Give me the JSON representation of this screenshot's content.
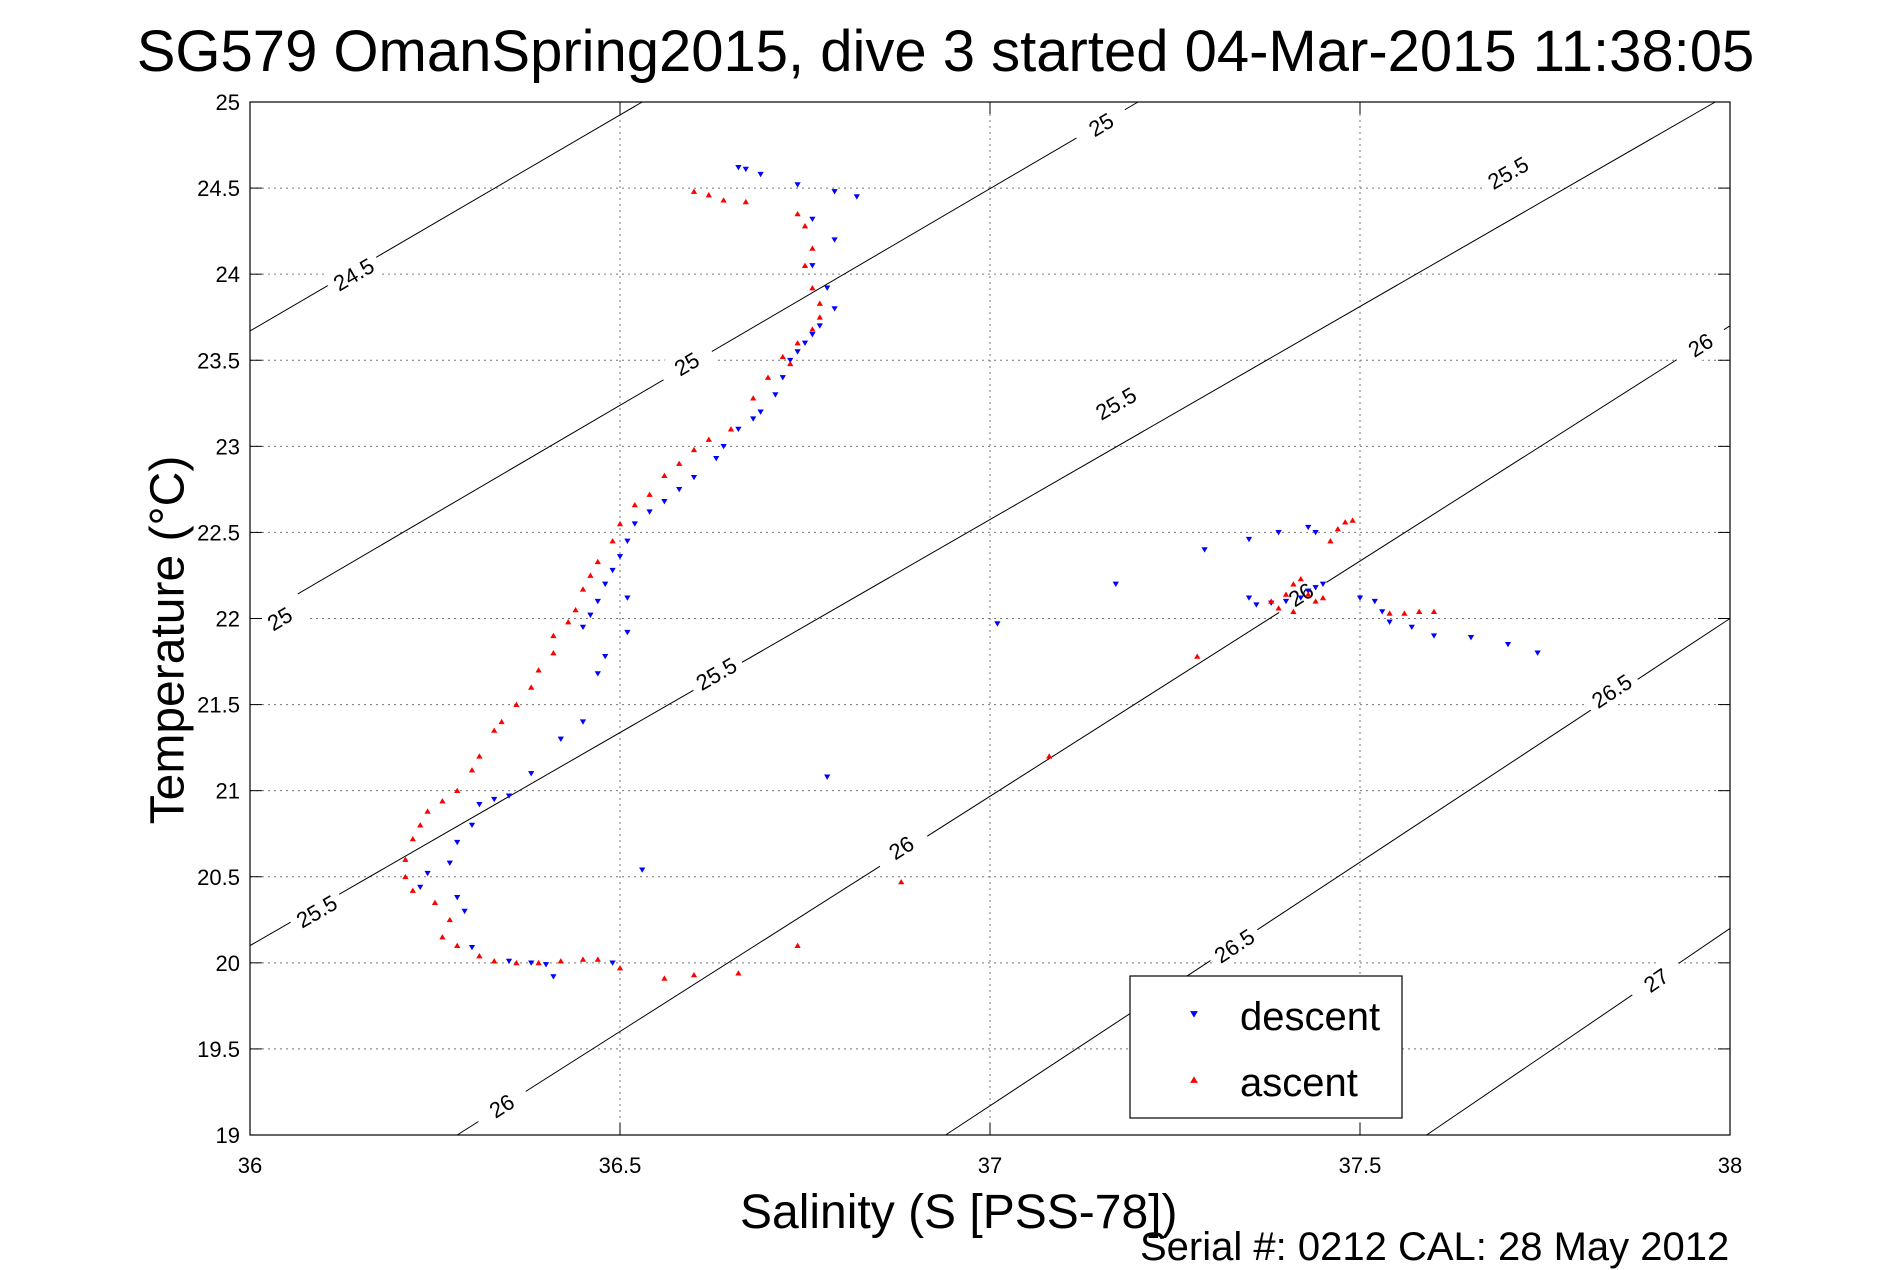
{
  "chart_data": {
    "type": "scatter",
    "title": "SG579 OmanSpring2015, dive 3 started 04-Mar-2015 11:38:05",
    "xlabel": "Salinity (S [PSS-78])",
    "ylabel": "Temperature (°C)",
    "footer": "Serial #: 0212  CAL: 28 May 2012",
    "xlim": [
      36,
      38
    ],
    "ylim": [
      19,
      25
    ],
    "xticks": [
      "36",
      "36.5",
      "37",
      "37.5",
      "38"
    ],
    "yticks": [
      "19",
      "19.5",
      "20",
      "20.5",
      "21",
      "21.5",
      "22",
      "22.5",
      "23",
      "23.5",
      "24",
      "24.5",
      "25"
    ],
    "grid": true,
    "legend": {
      "position": "bottom-right",
      "entries": [
        "descent",
        "ascent"
      ]
    },
    "colors": {
      "descent": "#0000ff",
      "ascent": "#ff0000",
      "contour": "#000000"
    },
    "density_contours": [
      {
        "label": "24.5",
        "points": [
          [
            36,
            23.67
          ],
          [
            36.53,
            25
          ]
        ],
        "label_at": [
          36.14,
          24.0
        ]
      },
      {
        "label": "25",
        "points": [
          [
            36,
            21.98
          ],
          [
            37.2,
            25
          ]
        ],
        "label_at": [
          36.04,
          22.0
        ]
      },
      {
        "label": "25",
        "points": [
          [
            36,
            21.98
          ],
          [
            37.2,
            25
          ]
        ],
        "label_at": [
          36.59,
          23.48
        ]
      },
      {
        "label": "25",
        "points": [
          [
            36,
            21.98
          ],
          [
            37.2,
            25
          ]
        ],
        "label_at": [
          37.15,
          24.87
        ]
      },
      {
        "label": "25.5",
        "points": [
          [
            36,
            20.1
          ],
          [
            37.98,
            25
          ]
        ],
        "label_at": [
          36.09,
          20.3
        ]
      },
      {
        "label": "25.5",
        "points": [
          [
            36,
            20.1
          ],
          [
            37.98,
            25
          ]
        ],
        "label_at": [
          36.63,
          21.68
        ]
      },
      {
        "label": "25.5",
        "points": [
          [
            36,
            20.1
          ],
          [
            37.98,
            25
          ]
        ],
        "label_at": [
          37.17,
          23.25
        ]
      },
      {
        "label": "25.5",
        "points": [
          [
            36,
            20.1
          ],
          [
            37.98,
            25
          ]
        ],
        "label_at": [
          37.7,
          24.59
        ]
      },
      {
        "label": "26",
        "points": [
          [
            36.28,
            19
          ],
          [
            38,
            23.7
          ]
        ],
        "label_at": [
          36.34,
          19.17
        ]
      },
      {
        "label": "26",
        "points": [
          [
            36.28,
            19
          ],
          [
            38,
            23.7
          ]
        ],
        "label_at": [
          36.88,
          20.67
        ]
      },
      {
        "label": "26",
        "points": [
          [
            36.28,
            19
          ],
          [
            38,
            23.7
          ]
        ],
        "label_at": [
          37.42,
          22.14
        ]
      },
      {
        "label": "26",
        "points": [
          [
            36.28,
            19
          ],
          [
            38,
            23.7
          ]
        ],
        "label_at": [
          37.96,
          23.59
        ]
      },
      {
        "label": "26.5",
        "points": [
          [
            36.94,
            19
          ],
          [
            38,
            22
          ]
        ],
        "label_at": [
          37.33,
          20.1
        ]
      },
      {
        "label": "26.5",
        "points": [
          [
            36.94,
            19
          ],
          [
            38,
            22
          ]
        ],
        "label_at": [
          37.84,
          21.58
        ]
      },
      {
        "label": "27",
        "points": [
          [
            37.59,
            19
          ],
          [
            38,
            20.2
          ]
        ],
        "label_at": [
          37.9,
          19.9
        ]
      }
    ],
    "series": [
      {
        "name": "descent",
        "marker": "triangle-down",
        "points": [
          [
            36.66,
            24.62
          ],
          [
            36.67,
            24.61
          ],
          [
            36.69,
            24.58
          ],
          [
            36.74,
            24.52
          ],
          [
            36.79,
            24.48
          ],
          [
            36.82,
            24.45
          ],
          [
            36.76,
            24.32
          ],
          [
            36.79,
            24.2
          ],
          [
            36.76,
            24.05
          ],
          [
            36.78,
            23.92
          ],
          [
            36.79,
            23.8
          ],
          [
            36.77,
            23.7
          ],
          [
            36.76,
            23.65
          ],
          [
            36.75,
            23.6
          ],
          [
            36.74,
            23.55
          ],
          [
            36.73,
            23.5
          ],
          [
            36.72,
            23.4
          ],
          [
            36.71,
            23.3
          ],
          [
            36.69,
            23.2
          ],
          [
            36.68,
            23.16
          ],
          [
            36.66,
            23.1
          ],
          [
            36.64,
            23.0
          ],
          [
            36.63,
            22.93
          ],
          [
            36.6,
            22.82
          ],
          [
            36.58,
            22.75
          ],
          [
            36.56,
            22.68
          ],
          [
            36.54,
            22.62
          ],
          [
            36.52,
            22.55
          ],
          [
            36.51,
            22.45
          ],
          [
            36.5,
            22.36
          ],
          [
            36.49,
            22.28
          ],
          [
            36.48,
            22.2
          ],
          [
            36.47,
            22.1
          ],
          [
            36.46,
            22.02
          ],
          [
            36.45,
            21.95
          ],
          [
            36.51,
            22.12
          ],
          [
            36.48,
            21.78
          ],
          [
            36.47,
            21.68
          ],
          [
            36.45,
            21.4
          ],
          [
            36.42,
            21.3
          ],
          [
            36.38,
            21.1
          ],
          [
            36.35,
            20.97
          ],
          [
            36.33,
            20.95
          ],
          [
            36.31,
            20.92
          ],
          [
            36.3,
            20.8
          ],
          [
            36.28,
            20.7
          ],
          [
            36.27,
            20.58
          ],
          [
            36.24,
            20.52
          ],
          [
            36.23,
            20.44
          ],
          [
            36.28,
            20.38
          ],
          [
            36.29,
            20.3
          ],
          [
            36.3,
            20.09
          ],
          [
            36.35,
            20.01
          ],
          [
            36.38,
            20.0
          ],
          [
            36.4,
            19.99
          ],
          [
            36.41,
            19.92
          ],
          [
            36.49,
            20.0
          ],
          [
            36.53,
            20.54
          ],
          [
            36.78,
            21.08
          ],
          [
            36.51,
            21.92
          ],
          [
            37.01,
            21.97
          ],
          [
            37.17,
            22.2
          ],
          [
            37.29,
            22.4
          ],
          [
            37.35,
            22.46
          ],
          [
            37.39,
            22.5
          ],
          [
            37.43,
            22.53
          ],
          [
            37.44,
            22.5
          ],
          [
            37.45,
            22.2
          ],
          [
            37.44,
            22.18
          ],
          [
            37.43,
            22.16
          ],
          [
            37.42,
            22.12
          ],
          [
            37.4,
            22.1
          ],
          [
            37.38,
            22.09
          ],
          [
            37.36,
            22.08
          ],
          [
            37.35,
            22.12
          ],
          [
            37.5,
            22.12
          ],
          [
            37.52,
            22.1
          ],
          [
            37.53,
            22.04
          ],
          [
            37.54,
            21.98
          ],
          [
            37.57,
            21.95
          ],
          [
            37.6,
            21.9
          ],
          [
            37.65,
            21.89
          ],
          [
            37.7,
            21.85
          ],
          [
            37.74,
            21.8
          ]
        ]
      },
      {
        "name": "ascent",
        "marker": "triangle-up",
        "points": [
          [
            36.6,
            24.48
          ],
          [
            36.62,
            24.46
          ],
          [
            36.64,
            24.43
          ],
          [
            36.67,
            24.42
          ],
          [
            36.74,
            24.35
          ],
          [
            36.75,
            24.28
          ],
          [
            36.76,
            24.15
          ],
          [
            36.75,
            24.05
          ],
          [
            36.76,
            23.92
          ],
          [
            36.77,
            23.83
          ],
          [
            36.77,
            23.75
          ],
          [
            36.76,
            23.68
          ],
          [
            36.74,
            23.6
          ],
          [
            36.72,
            23.52
          ],
          [
            36.73,
            23.48
          ],
          [
            36.7,
            23.4
          ],
          [
            36.68,
            23.28
          ],
          [
            36.65,
            23.1
          ],
          [
            36.62,
            23.04
          ],
          [
            36.6,
            22.98
          ],
          [
            36.58,
            22.9
          ],
          [
            36.56,
            22.83
          ],
          [
            36.54,
            22.72
          ],
          [
            36.52,
            22.66
          ],
          [
            36.5,
            22.55
          ],
          [
            36.49,
            22.45
          ],
          [
            36.47,
            22.33
          ],
          [
            36.46,
            22.25
          ],
          [
            36.45,
            22.17
          ],
          [
            36.44,
            22.05
          ],
          [
            36.43,
            21.98
          ],
          [
            36.41,
            21.9
          ],
          [
            36.41,
            21.8
          ],
          [
            36.39,
            21.7
          ],
          [
            36.38,
            21.6
          ],
          [
            36.36,
            21.5
          ],
          [
            36.34,
            21.4
          ],
          [
            36.33,
            21.35
          ],
          [
            36.31,
            21.2
          ],
          [
            36.3,
            21.12
          ],
          [
            36.28,
            21.0
          ],
          [
            36.26,
            20.94
          ],
          [
            36.24,
            20.88
          ],
          [
            36.23,
            20.8
          ],
          [
            36.22,
            20.72
          ],
          [
            36.21,
            20.6
          ],
          [
            36.21,
            20.5
          ],
          [
            36.22,
            20.42
          ],
          [
            36.25,
            20.35
          ],
          [
            36.27,
            20.25
          ],
          [
            36.26,
            20.15
          ],
          [
            36.28,
            20.1
          ],
          [
            36.31,
            20.04
          ],
          [
            36.33,
            20.01
          ],
          [
            36.36,
            20.0
          ],
          [
            36.39,
            20.0
          ],
          [
            36.42,
            20.01
          ],
          [
            36.45,
            20.02
          ],
          [
            36.47,
            20.02
          ],
          [
            36.5,
            19.97
          ],
          [
            36.56,
            19.91
          ],
          [
            36.6,
            19.93
          ],
          [
            36.66,
            19.94
          ],
          [
            36.74,
            20.1
          ],
          [
            36.88,
            20.47
          ],
          [
            37.08,
            21.2
          ],
          [
            37.28,
            21.78
          ],
          [
            37.38,
            22.1
          ],
          [
            37.4,
            22.14
          ],
          [
            37.41,
            22.2
          ],
          [
            37.42,
            22.23
          ],
          [
            37.43,
            22.14
          ],
          [
            37.44,
            22.1
          ],
          [
            37.45,
            22.12
          ],
          [
            37.46,
            22.45
          ],
          [
            37.47,
            22.52
          ],
          [
            37.48,
            22.56
          ],
          [
            37.49,
            22.57
          ],
          [
            37.41,
            22.04
          ],
          [
            37.39,
            22.06
          ],
          [
            37.54,
            22.03
          ],
          [
            37.56,
            22.03
          ],
          [
            37.58,
            22.04
          ],
          [
            37.6,
            22.04
          ]
        ]
      }
    ]
  }
}
